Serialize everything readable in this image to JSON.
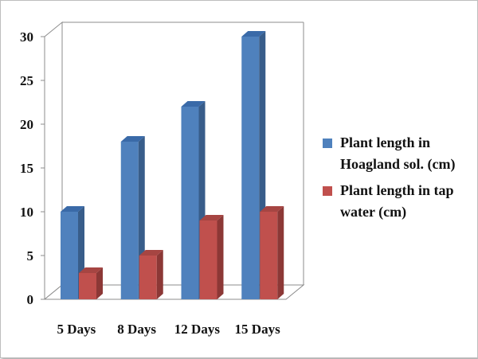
{
  "chart_data": {
    "type": "bar",
    "categories": [
      "5 Days",
      "8 Days",
      "12 Days",
      "15 Days"
    ],
    "series": [
      {
        "name": "Plant length in Hoagland sol. (cm)",
        "values": [
          10,
          18,
          22,
          30
        ],
        "color": "#4f81bd",
        "side": "#385d8a",
        "top": "#3a6aa8"
      },
      {
        "name": "Plant length in  tap water (cm)",
        "values": [
          3,
          5,
          9,
          10
        ],
        "color": "#c0504d",
        "side": "#8c3836",
        "top": "#a64542"
      }
    ],
    "ylim": [
      0,
      30
    ],
    "yticks": [
      "0",
      "5",
      "10",
      "15",
      "20",
      "25",
      "30"
    ],
    "grid": false,
    "legend": "right",
    "title": "",
    "xlabel": "",
    "ylabel": ""
  }
}
